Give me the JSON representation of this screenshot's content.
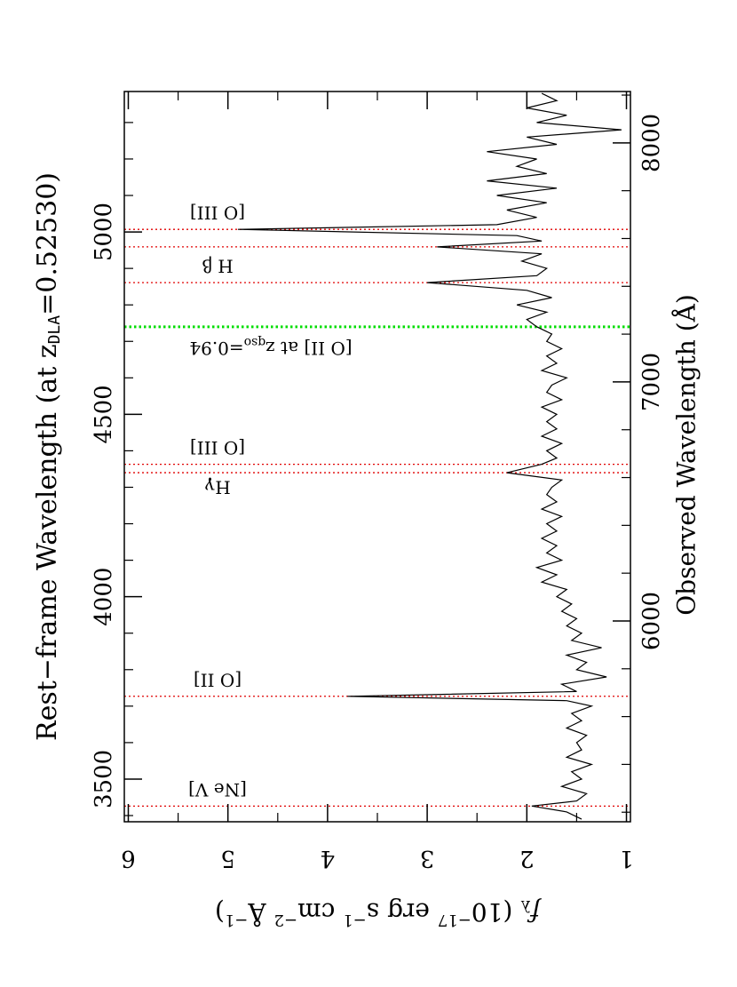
{
  "chart_data": {
    "type": "line",
    "title": [
      "Rest−frame Wavelength (at z",
      "DLA",
      "=0.52530)"
    ],
    "xlabel2": "Observed Wavelength (Å)",
    "ylabel": [
      "f",
      "λ",
      " (10",
      "−17",
      " erg s",
      "−1",
      " cm",
      "−2",
      " Å",
      "−1",
      ")"
    ],
    "xlim": [
      3383,
      5385
    ],
    "xticks": [
      3500,
      4000,
      4500,
      5000
    ],
    "xminor": [
      3400,
      3600,
      3700,
      3800,
      3900,
      4100,
      4200,
      4300,
      4400,
      4600,
      4700,
      4800,
      4900,
      5100,
      5200,
      5300
    ],
    "x2lim": [
      5160,
      8215
    ],
    "x2ticks": [
      6000,
      7000,
      8000
    ],
    "x2minor": [
      5200,
      5400,
      5600,
      5800,
      6200,
      6400,
      6600,
      6800,
      7200,
      7400,
      7600,
      7800,
      8200
    ],
    "ylim": [
      0.96,
      6.04
    ],
    "yticks": [
      1,
      2,
      3,
      4,
      5,
      6
    ],
    "yminor": [
      1.5,
      2.5,
      3.5,
      4.5,
      5.5
    ],
    "series": [
      {
        "color": "#000000",
        "x": [
          3390,
          3410,
          3426,
          3440,
          3460,
          3480,
          3500,
          3520,
          3540,
          3560,
          3580,
          3600,
          3620,
          3640,
          3660,
          3680,
          3700,
          3715,
          3727,
          3740,
          3760,
          3780,
          3800,
          3820,
          3840,
          3860,
          3880,
          3900,
          3920,
          3940,
          3960,
          3980,
          4000,
          4020,
          4040,
          4060,
          4080,
          4100,
          4120,
          4140,
          4160,
          4180,
          4200,
          4220,
          4240,
          4260,
          4280,
          4300,
          4320,
          4340,
          4363,
          4380,
          4400,
          4420,
          4440,
          4460,
          4480,
          4500,
          4520,
          4540,
          4560,
          4580,
          4600,
          4620,
          4640,
          4660,
          4680,
          4700,
          4720,
          4740,
          4760,
          4780,
          4800,
          4820,
          4840,
          4861,
          4880,
          4900,
          4920,
          4940,
          4959,
          4975,
          4990,
          5007,
          5020,
          5040,
          5060,
          5080,
          5100,
          5120,
          5140,
          5160,
          5180,
          5200,
          5220,
          5240,
          5260,
          5280,
          5300,
          5320,
          5340,
          5360,
          5380
        ],
        "values": [
          1.45,
          1.6,
          1.95,
          1.5,
          1.4,
          1.65,
          1.45,
          1.55,
          1.35,
          1.6,
          1.45,
          1.5,
          1.4,
          1.6,
          1.45,
          1.55,
          1.35,
          1.6,
          3.8,
          1.5,
          1.65,
          1.2,
          1.5,
          1.4,
          1.6,
          1.25,
          1.55,
          1.45,
          1.6,
          1.5,
          1.65,
          1.55,
          1.7,
          1.6,
          1.85,
          1.7,
          1.9,
          1.65,
          1.8,
          1.7,
          1.85,
          1.7,
          1.8,
          1.65,
          1.85,
          1.7,
          1.8,
          1.75,
          1.65,
          2.2,
          1.85,
          1.7,
          1.8,
          1.65,
          1.85,
          1.7,
          1.8,
          1.7,
          1.85,
          1.65,
          1.8,
          1.75,
          1.6,
          1.85,
          1.7,
          1.8,
          1.65,
          1.8,
          1.75,
          1.9,
          2.0,
          1.8,
          2.1,
          1.75,
          2.0,
          3.0,
          1.9,
          1.8,
          2.05,
          1.85,
          2.9,
          1.85,
          2.1,
          4.9,
          2.3,
          1.9,
          2.2,
          1.8,
          2.3,
          1.7,
          2.4,
          1.8,
          2.1,
          1.9,
          2.4,
          1.7,
          2.0,
          1.05,
          1.9,
          1.6,
          2.0,
          1.7,
          1.85
        ]
      }
    ],
    "lines": [
      {
        "x": 3426,
        "label": "[Ne V]",
        "color": "#e00000"
      },
      {
        "x": 3727,
        "label": "[O II]",
        "color": "#e00000"
      },
      {
        "x": 4340,
        "label": "Hγ",
        "color": "#e00000"
      },
      {
        "x": 4363,
        "label": "[O III]",
        "color": "#e00000"
      },
      {
        "x": 4861,
        "label": "H β",
        "color": "#e00000"
      },
      {
        "x": 4959,
        "color": "#e00000"
      },
      {
        "x": 5007,
        "label": "[O III]",
        "color": "#e00000"
      }
    ],
    "qso_line": {
      "x": 4740,
      "label": [
        "[O II] at z",
        "qso",
        "=0.94"
      ],
      "color": "#00dd00"
    }
  }
}
